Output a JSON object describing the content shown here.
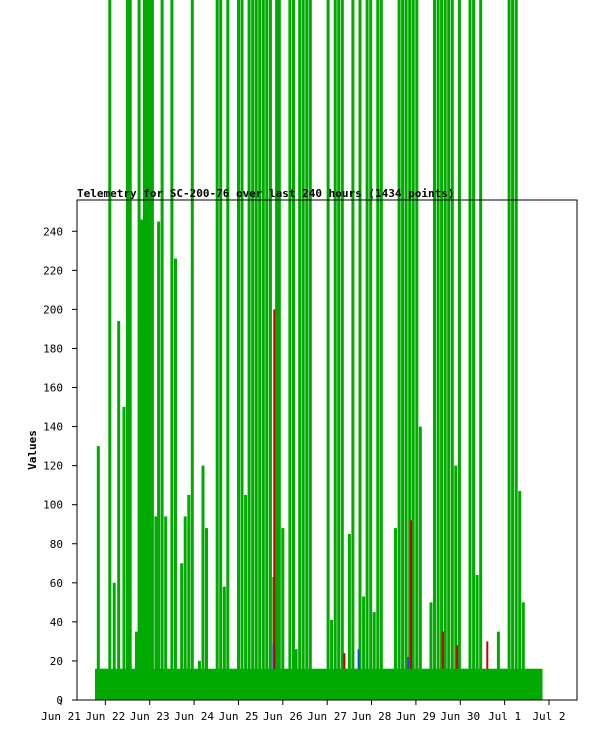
{
  "chart_data": {
    "type": "bar",
    "title": "Telemetry for SC-200-76 over last 240 hours (1434 points)",
    "xlabel": "",
    "ylabel": "Values",
    "ylim": [
      0,
      256
    ],
    "yticks": [
      0,
      20,
      40,
      60,
      80,
      100,
      120,
      140,
      160,
      180,
      200,
      220,
      240
    ],
    "x_ticks": [
      "Jun 21",
      "Jun 22",
      "Jun 23",
      "Jun 24",
      "Jun 25",
      "Jun 26",
      "Jun 27",
      "Jun 28",
      "Jun 29",
      "Jun 30",
      "Jul 1",
      "Jul 2"
    ],
    "x_range_days": [
      0,
      11
    ],
    "grid": false,
    "series": [
      {
        "color": "#00aa00",
        "x": [
          0.8,
          0.84,
          0.9,
          0.96,
          1.02,
          1.1,
          1.2,
          1.3,
          1.34,
          1.42,
          1.5,
          1.56,
          1.62,
          1.7,
          1.76,
          1.82,
          1.88,
          1.94,
          2.0,
          2.06,
          2.14,
          2.2,
          2.28,
          2.36,
          2.42,
          2.5,
          2.58,
          2.64,
          2.72,
          2.8,
          2.88,
          2.96,
          3.04,
          3.12,
          3.2,
          3.28,
          3.36,
          3.44,
          3.52,
          3.6,
          3.68,
          3.76,
          3.84,
          3.92,
          4.0,
          4.08,
          4.16,
          4.24,
          4.32,
          4.4,
          4.48,
          4.56,
          4.64,
          4.72,
          4.8,
          4.86,
          4.92,
          5.0,
          5.08,
          5.16,
          5.24,
          5.3,
          5.38,
          5.46,
          5.54,
          5.62,
          5.7,
          5.78,
          5.86,
          5.94,
          6.02,
          6.1,
          6.18,
          6.26,
          6.34,
          6.42,
          6.5,
          6.58,
          6.66,
          6.74,
          6.82,
          6.9,
          6.98,
          7.06,
          7.14,
          7.22,
          7.3,
          7.38,
          7.46,
          7.54,
          7.62,
          7.7,
          7.78,
          7.86,
          7.94,
          8.02,
          8.1,
          8.18,
          8.26,
          8.34,
          8.42,
          8.5,
          8.58,
          8.66,
          8.74,
          8.82,
          8.9,
          8.98,
          9.06,
          9.14,
          9.22,
          9.3,
          9.38,
          9.46,
          9.54,
          9.62,
          9.7,
          9.78,
          9.86,
          9.94,
          10.02,
          10.1,
          10.18,
          10.26,
          10.34,
          10.42,
          10.5,
          10.58,
          10.66,
          10.74,
          10.82
        ],
        "values": [
          16,
          130,
          16,
          16,
          16,
          256,
          60,
          194,
          16,
          150,
          256,
          256,
          16,
          35,
          256,
          246,
          256,
          256,
          256,
          256,
          94,
          245,
          256,
          94,
          16,
          256,
          226,
          16,
          70,
          94,
          105,
          256,
          16,
          20,
          120,
          88,
          16,
          16,
          256,
          256,
          58,
          256,
          16,
          16,
          256,
          256,
          105,
          256,
          256,
          256,
          256,
          256,
          256,
          256,
          63,
          256,
          256,
          88,
          16,
          256,
          256,
          26,
          256,
          256,
          256,
          256,
          16,
          16,
          16,
          16,
          256,
          41,
          256,
          256,
          256,
          16,
          85,
          256,
          16,
          256,
          53,
          256,
          256,
          45,
          256,
          256,
          16,
          16,
          16,
          88,
          256,
          256,
          256,
          256,
          256,
          256,
          140,
          16,
          16,
          50,
          256,
          256,
          256,
          256,
          256,
          256,
          120,
          256,
          16,
          16,
          256,
          256,
          64,
          256,
          16,
          16,
          16,
          16,
          35,
          16,
          16,
          256,
          256,
          256,
          107,
          50,
          16,
          16,
          16,
          16,
          16
        ]
      },
      {
        "color": "#0055cc",
        "x": [
          0.84,
          1.5,
          2.12,
          2.46,
          2.78,
          3.4,
          4.1,
          4.46,
          4.8,
          5.28,
          5.56,
          5.94,
          6.4,
          6.72,
          7.1,
          7.42,
          7.84,
          8.06,
          8.4,
          8.74,
          9.12,
          9.46,
          9.8,
          10.14,
          10.56
        ],
        "values": [
          15,
          5,
          14,
          8,
          16,
          6,
          10,
          4,
          29,
          10,
          12,
          6,
          8,
          26,
          11,
          6,
          22,
          15,
          4,
          12,
          6,
          9,
          5,
          7,
          5
        ]
      },
      {
        "color": "#cc0000",
        "x": [
          1.4,
          2.32,
          4.82,
          5.46,
          6.4,
          7.42,
          7.9,
          8.62,
          8.94,
          9.62,
          10.2
        ],
        "values": [
          5,
          8,
          200,
          6,
          24,
          10,
          92,
          35,
          28,
          30,
          8
        ]
      },
      {
        "color": "#880088",
        "x": [
          0.9,
          1.3,
          1.7,
          2.1,
          2.5,
          2.9,
          3.3,
          3.7,
          4.1,
          4.5,
          4.9,
          5.3,
          5.7,
          6.1,
          6.5,
          6.9,
          7.3,
          7.7,
          8.1,
          8.5,
          8.9,
          9.3,
          9.7,
          10.1,
          10.5,
          10.8
        ],
        "values": [
          3,
          4,
          5,
          3,
          6,
          4,
          3,
          5,
          4,
          3,
          6,
          4,
          5,
          3,
          4,
          6,
          3,
          5,
          4,
          3,
          6,
          4,
          5,
          3,
          4,
          3
        ]
      }
    ]
  }
}
